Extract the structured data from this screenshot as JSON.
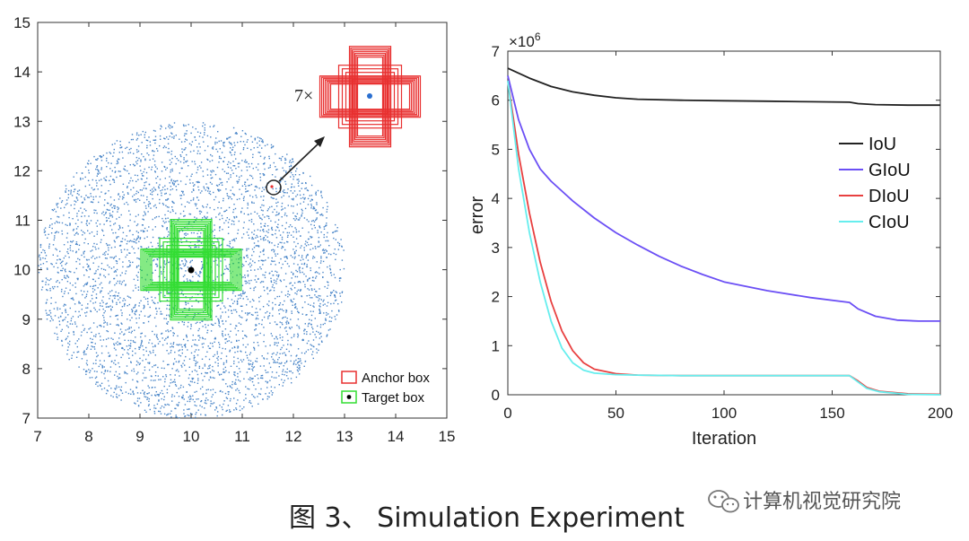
{
  "caption": "图 3、 Simulation Experiment",
  "watermark": "计算机视觉研究院",
  "chart_data": [
    {
      "type": "scatter",
      "xlim": [
        7,
        15
      ],
      "ylim": [
        7,
        15
      ],
      "xticks": [
        "7",
        "8",
        "9",
        "10",
        "11",
        "12",
        "13",
        "14",
        "15"
      ],
      "yticks": [
        "7",
        "8",
        "9",
        "10",
        "11",
        "12",
        "13",
        "14",
        "15"
      ],
      "point_cloud": {
        "center": [
          10,
          10
        ],
        "radius": 3,
        "count": 4200,
        "color": "#4a86c8"
      },
      "target_center": [
        10,
        10
      ],
      "anchor_inset_center": [
        13.5,
        13.5
      ],
      "magnified_point": [
        11.6,
        11.7
      ],
      "multiplier_label": "7×",
      "legend": [
        {
          "label": "Anchor box",
          "color": "#e83030"
        },
        {
          "label": "Target box",
          "color": "#33dd33"
        }
      ],
      "legend_position": "bottom-right"
    },
    {
      "type": "line",
      "xlabel": "Iteration",
      "ylabel": "error",
      "xlim": [
        0,
        200
      ],
      "ylim": [
        0,
        7
      ],
      "y_exponent_label": "×10",
      "y_exponent": "6",
      "xticks": [
        "0",
        "50",
        "100",
        "150",
        "200"
      ],
      "yticks": [
        "0",
        "1",
        "2",
        "3",
        "4",
        "5",
        "6",
        "7"
      ],
      "legend_position": "top-right",
      "series": [
        {
          "name": "IoU",
          "color": "#222222",
          "points": [
            [
              0,
              6.65
            ],
            [
              10,
              6.45
            ],
            [
              20,
              6.28
            ],
            [
              30,
              6.17
            ],
            [
              40,
              6.1
            ],
            [
              50,
              6.05
            ],
            [
              60,
              6.02
            ],
            [
              80,
              6.0
            ],
            [
              100,
              5.99
            ],
            [
              120,
              5.98
            ],
            [
              140,
              5.97
            ],
            [
              158,
              5.96
            ],
            [
              162,
              5.93
            ],
            [
              170,
              5.91
            ],
            [
              185,
              5.9
            ],
            [
              200,
              5.9
            ]
          ]
        },
        {
          "name": "GIoU",
          "color": "#6b4ff5",
          "points": [
            [
              0,
              6.5
            ],
            [
              5,
              5.6
            ],
            [
              10,
              5.0
            ],
            [
              15,
              4.6
            ],
            [
              20,
              4.35
            ],
            [
              30,
              3.95
            ],
            [
              40,
              3.6
            ],
            [
              50,
              3.3
            ],
            [
              60,
              3.05
            ],
            [
              70,
              2.82
            ],
            [
              80,
              2.62
            ],
            [
              90,
              2.45
            ],
            [
              100,
              2.3
            ],
            [
              120,
              2.12
            ],
            [
              140,
              1.98
            ],
            [
              158,
              1.88
            ],
            [
              162,
              1.75
            ],
            [
              170,
              1.6
            ],
            [
              180,
              1.52
            ],
            [
              190,
              1.5
            ],
            [
              200,
              1.5
            ]
          ]
        },
        {
          "name": "DIoU",
          "color": "#e84040",
          "points": [
            [
              0,
              6.4
            ],
            [
              5,
              4.9
            ],
            [
              10,
              3.7
            ],
            [
              15,
              2.7
            ],
            [
              20,
              1.9
            ],
            [
              25,
              1.3
            ],
            [
              30,
              0.9
            ],
            [
              35,
              0.65
            ],
            [
              40,
              0.52
            ],
            [
              50,
              0.43
            ],
            [
              60,
              0.4
            ],
            [
              80,
              0.39
            ],
            [
              100,
              0.39
            ],
            [
              140,
              0.39
            ],
            [
              158,
              0.39
            ],
            [
              162,
              0.28
            ],
            [
              166,
              0.15
            ],
            [
              172,
              0.07
            ],
            [
              185,
              0.02
            ],
            [
              200,
              0.01
            ]
          ]
        },
        {
          "name": "CIoU",
          "color": "#66eeee",
          "points": [
            [
              0,
              6.4
            ],
            [
              5,
              4.6
            ],
            [
              10,
              3.3
            ],
            [
              15,
              2.3
            ],
            [
              20,
              1.5
            ],
            [
              25,
              0.95
            ],
            [
              30,
              0.65
            ],
            [
              35,
              0.5
            ],
            [
              40,
              0.44
            ],
            [
              50,
              0.41
            ],
            [
              60,
              0.4
            ],
            [
              80,
              0.39
            ],
            [
              100,
              0.39
            ],
            [
              140,
              0.39
            ],
            [
              158,
              0.39
            ],
            [
              162,
              0.26
            ],
            [
              166,
              0.13
            ],
            [
              172,
              0.06
            ],
            [
              185,
              0.01
            ],
            [
              200,
              0.0
            ]
          ]
        }
      ]
    }
  ]
}
